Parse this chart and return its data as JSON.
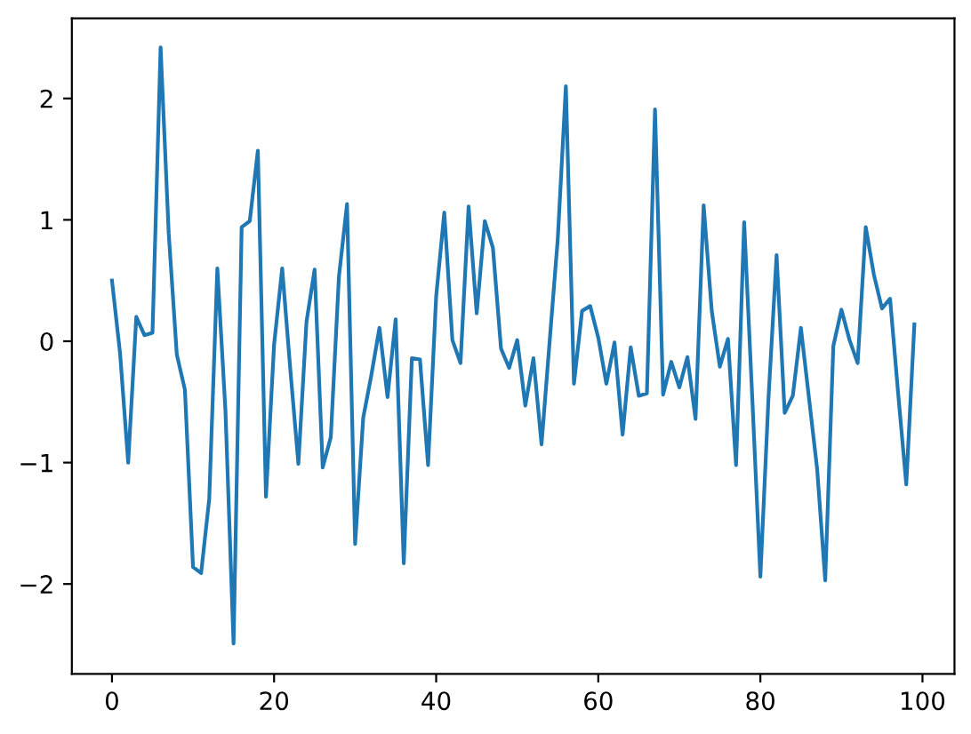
{
  "chart_data": {
    "type": "line",
    "x": [
      0,
      1,
      2,
      3,
      4,
      5,
      6,
      7,
      8,
      9,
      10,
      11,
      12,
      13,
      14,
      15,
      16,
      17,
      18,
      19,
      20,
      21,
      22,
      23,
      24,
      25,
      26,
      27,
      28,
      29,
      30,
      31,
      32,
      33,
      34,
      35,
      36,
      37,
      38,
      39,
      40,
      41,
      42,
      43,
      44,
      45,
      46,
      47,
      48,
      49,
      50,
      51,
      52,
      53,
      54,
      55,
      56,
      57,
      58,
      59,
      60,
      61,
      62,
      63,
      64,
      65,
      66,
      67,
      68,
      69,
      70,
      71,
      72,
      73,
      74,
      75,
      76,
      77,
      78,
      79,
      80,
      81,
      82,
      83,
      84,
      85,
      86,
      87,
      88,
      89,
      90,
      91,
      92,
      93,
      94,
      95,
      96,
      97,
      98,
      99
    ],
    "series": [
      {
        "color": "#1f77b4",
        "values": [
          0.5,
          -0.1,
          -1.0,
          0.2,
          0.05,
          0.07,
          2.42,
          0.89,
          -0.11,
          -0.4,
          -1.86,
          -1.91,
          -1.3,
          0.6,
          -0.57,
          -2.49,
          0.94,
          0.99,
          1.57,
          -1.28,
          -0.03,
          0.6,
          -0.23,
          -1.01,
          0.16,
          0.59,
          -1.04,
          -0.79,
          0.53,
          1.13,
          -1.67,
          -0.63,
          -0.28,
          0.11,
          -0.46,
          0.18,
          -1.83,
          -0.14,
          -0.15,
          -1.02,
          0.37,
          1.06,
          0.01,
          -0.18,
          1.11,
          0.23,
          0.99,
          0.77,
          -0.06,
          -0.22,
          0.01,
          -0.53,
          -0.14,
          -0.85,
          0.0,
          0.84,
          2.1,
          -0.35,
          0.25,
          0.29,
          0.03,
          -0.35,
          -0.01,
          -0.77,
          -0.05,
          -0.45,
          -0.43,
          1.91,
          -0.44,
          -0.17,
          -0.38,
          -0.13,
          -0.64,
          1.12,
          0.25,
          -0.21,
          0.02,
          -1.02,
          0.98,
          -0.47,
          -1.94,
          -0.47,
          0.71,
          -0.59,
          -0.45,
          0.11,
          -0.47,
          -1.05,
          -1.97,
          -0.04,
          0.26,
          0.01,
          -0.18,
          0.94,
          0.55,
          0.27,
          0.35,
          -0.43,
          -1.18,
          0.14
        ]
      }
    ],
    "xlim": [
      -4.95,
      103.95
    ],
    "xticks": [
      0,
      20,
      40,
      60,
      80,
      100
    ],
    "ylim": [
      -2.74,
      2.66
    ],
    "yticks": [
      {
        "value": -2,
        "label": "−2"
      },
      {
        "value": -1,
        "label": "−1"
      },
      0,
      1,
      2
    ],
    "line_style": "solid"
  }
}
